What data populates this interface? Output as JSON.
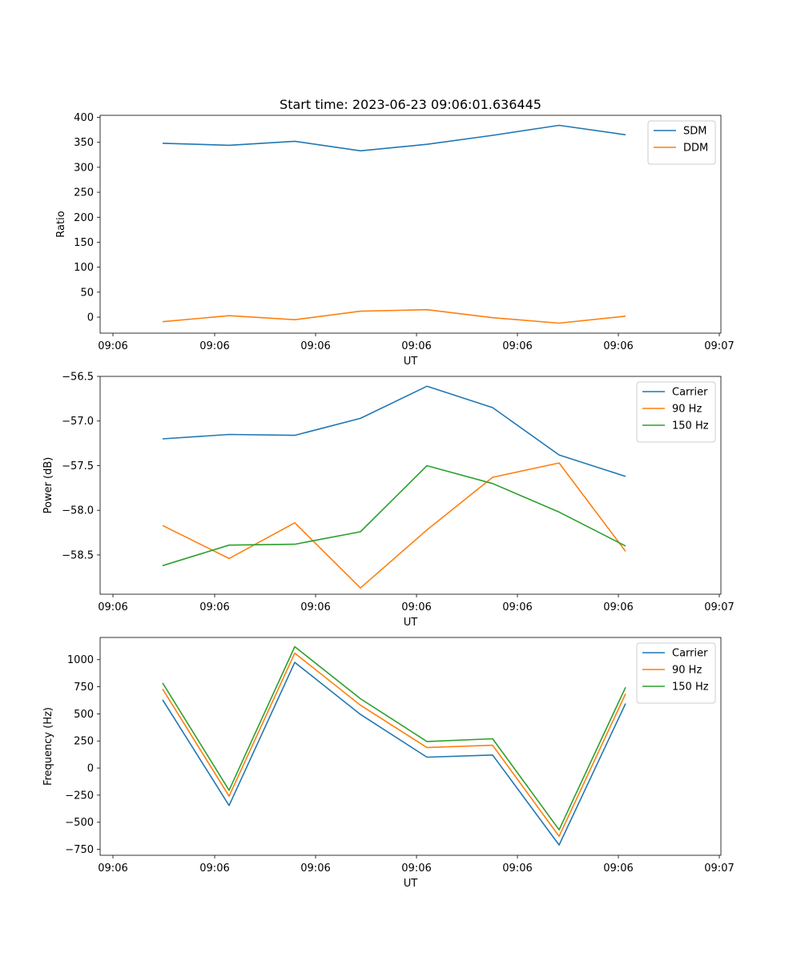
{
  "figure": {
    "title": "Start time: 2023-06-23 09:06:01.636445"
  },
  "colors": {
    "blue": "#1f77b4",
    "orange": "#ff7f0e",
    "green": "#2ca02c"
  },
  "chart_data": [
    {
      "type": "line",
      "title": "Start time: 2023-06-23 09:06:01.636445",
      "xlabel": "UT",
      "ylabel": "Ratio",
      "x_tick_labels": [
        "09:06",
        "09:06",
        "09:06",
        "09:06",
        "09:06",
        "09:06",
        "09:07"
      ],
      "y_ticks": [
        0,
        50,
        100,
        150,
        200,
        250,
        300,
        350,
        400
      ],
      "y_tick_labels": [
        "0",
        "50",
        "100",
        "150",
        "200",
        "250",
        "300",
        "350",
        "400"
      ],
      "ylim": [
        -32,
        404
      ],
      "legend_location": "upper right",
      "series": [
        {
          "name": "SDM",
          "color": "#1f77b4",
          "values": [
            348,
            344,
            352,
            333,
            346,
            364,
            384,
            365
          ]
        },
        {
          "name": "DDM",
          "color": "#ff7f0e",
          "values": [
            -9,
            3,
            -5,
            12,
            15,
            -1,
            -12,
            2
          ]
        }
      ]
    },
    {
      "type": "line",
      "xlabel": "UT",
      "ylabel": "Power (dB)",
      "x_tick_labels": [
        "09:06",
        "09:06",
        "09:06",
        "09:06",
        "09:06",
        "09:06",
        "09:07"
      ],
      "y_ticks": [
        -58.5,
        -58.0,
        -57.5,
        -57.0,
        -56.5
      ],
      "y_tick_labels": [
        "−58.5",
        "−58.0",
        "−57.5",
        "−57.0",
        "−56.5"
      ],
      "ylim": [
        -58.94,
        -56.5
      ],
      "legend_location": "upper right",
      "series": [
        {
          "name": "Carrier",
          "color": "#1f77b4",
          "values": [
            -57.2,
            -57.15,
            -57.16,
            -56.97,
            -56.61,
            -56.85,
            -57.38,
            -57.62
          ]
        },
        {
          "name": "90 Hz",
          "color": "#ff7f0e",
          "values": [
            -58.17,
            -58.54,
            -58.14,
            -58.87,
            -58.22,
            -57.63,
            -57.47,
            -58.46
          ]
        },
        {
          "name": "150 Hz",
          "color": "#2ca02c",
          "values": [
            -58.62,
            -58.39,
            -58.38,
            -58.24,
            -57.5,
            -57.7,
            -58.02,
            -58.4
          ]
        }
      ]
    },
    {
      "type": "line",
      "xlabel": "UT",
      "ylabel": "Frequency (Hz)",
      "x_tick_labels": [
        "09:06",
        "09:06",
        "09:06",
        "09:06",
        "09:06",
        "09:06",
        "09:07"
      ],
      "y_ticks": [
        -750,
        -500,
        -250,
        0,
        250,
        500,
        750,
        1000
      ],
      "y_tick_labels": [
        "−750",
        "−500",
        "−250",
        "0",
        "250",
        "500",
        "750",
        "1000"
      ],
      "ylim": [
        -805,
        1205
      ],
      "legend_location": "upper right",
      "series": [
        {
          "name": "Carrier",
          "color": "#1f77b4",
          "values": [
            630,
            -345,
            975,
            495,
            100,
            120,
            -710,
            595
          ]
        },
        {
          "name": "90 Hz",
          "color": "#ff7f0e",
          "values": [
            730,
            -260,
            1060,
            580,
            190,
            210,
            -630,
            685
          ]
        },
        {
          "name": "150 Hz",
          "color": "#2ca02c",
          "values": [
            785,
            -205,
            1120,
            640,
            245,
            270,
            -570,
            745
          ]
        }
      ]
    }
  ]
}
